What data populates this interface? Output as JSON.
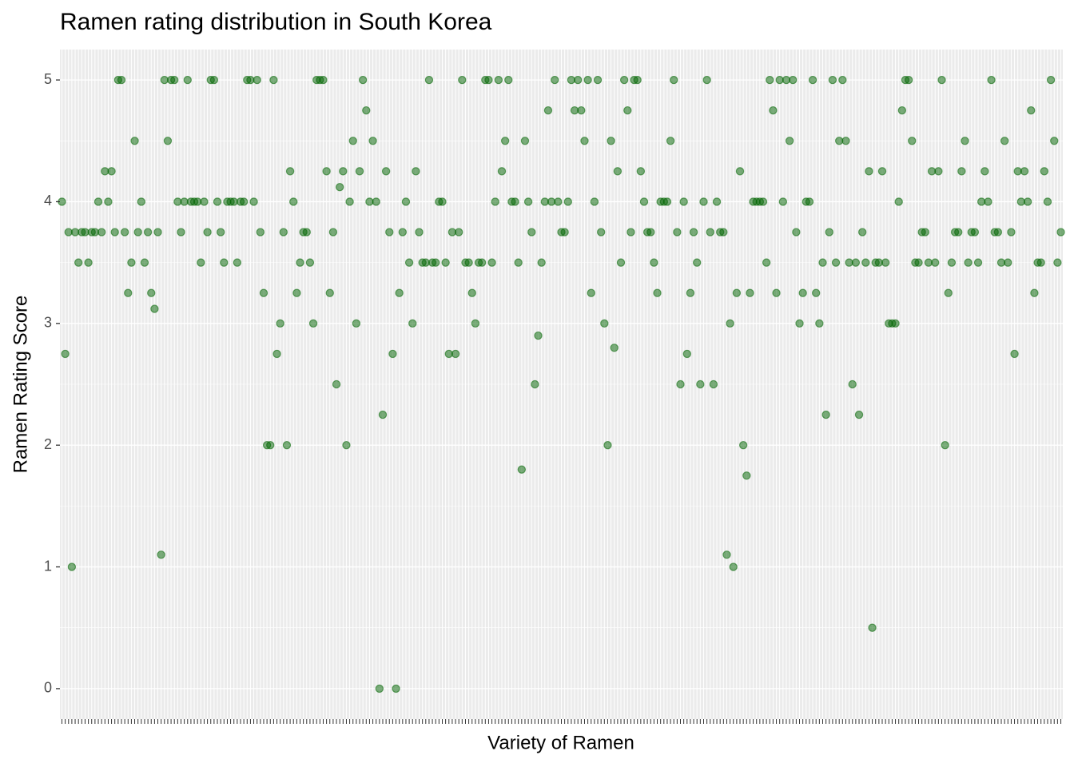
{
  "chart_data": {
    "type": "scatter",
    "title": "Ramen rating distribution in South Korea",
    "x_label": "Variety of Ramen",
    "y_label": "Ramen Rating Score",
    "color": "#006400",
    "grid": true,
    "ylim": [
      -0.25,
      5.25
    ],
    "yticks": [
      0,
      1,
      2,
      3,
      4,
      5
    ],
    "categories": [
      null,
      null,
      null,
      null,
      null,
      null,
      null,
      null,
      null,
      null,
      null,
      null,
      null,
      null,
      null,
      null,
      null,
      null,
      null,
      null,
      null,
      null,
      null,
      null,
      null,
      null,
      null,
      null,
      null,
      null,
      null,
      null,
      null,
      null,
      null,
      null,
      null,
      null,
      null,
      null,
      null,
      null,
      null,
      null,
      null,
      null,
      null,
      null,
      null,
      null,
      null,
      null,
      null,
      null,
      null,
      null,
      null,
      null,
      null,
      null,
      null,
      null,
      null,
      null,
      null,
      null,
      null,
      null,
      null,
      null,
      null,
      null,
      null,
      null,
      null,
      null,
      null,
      null,
      null,
      null,
      null,
      null,
      null,
      null,
      null,
      null,
      null,
      null,
      null,
      null,
      null,
      null,
      null,
      null,
      null,
      null,
      null,
      null,
      null,
      null,
      null,
      null,
      null,
      null,
      null,
      null,
      null,
      null,
      null,
      null,
      null,
      null,
      null,
      null,
      null,
      null,
      null,
      null,
      null,
      null,
      null,
      null,
      null,
      null,
      null,
      null,
      null,
      null,
      null,
      null,
      null,
      null,
      null,
      null,
      null,
      null,
      null,
      null,
      null,
      null,
      null,
      null,
      null,
      null,
      null,
      null,
      null,
      null,
      null,
      null,
      null,
      null,
      null,
      null,
      null,
      null,
      null,
      null,
      null,
      null,
      null,
      null,
      null,
      null,
      null,
      null,
      null,
      null,
      null,
      null,
      null,
      null,
      null,
      null,
      null,
      null,
      null,
      null,
      null,
      null,
      null,
      null,
      null,
      null,
      null,
      null,
      null,
      null,
      null,
      null,
      null,
      null,
      null,
      null,
      null,
      null,
      null,
      null,
      null,
      null,
      null,
      null,
      null,
      null,
      null,
      null,
      null,
      null,
      null,
      null,
      null,
      null,
      null,
      null,
      null,
      null,
      null,
      null,
      null,
      null,
      null,
      null,
      null,
      null,
      null,
      null,
      null,
      null,
      null,
      null,
      null,
      null,
      null,
      null,
      null,
      null,
      null,
      null,
      null,
      null,
      null,
      null,
      null,
      null,
      null,
      null,
      null,
      null,
      null,
      null,
      null,
      null,
      null,
      null,
      null,
      null,
      null,
      null,
      null,
      null,
      null,
      null,
      null,
      null,
      null,
      null,
      null,
      null,
      null,
      null,
      null,
      null,
      null,
      null,
      null,
      null,
      null,
      null,
      null,
      null,
      null,
      null,
      null,
      null,
      null,
      null,
      null,
      null,
      null,
      null,
      null,
      null,
      null,
      null,
      null,
      null,
      null,
      null,
      null,
      null,
      null,
      null,
      null
    ],
    "values": [
      4,
      2.75,
      3.75,
      1,
      3.75,
      3.5,
      3.75,
      3.75,
      3.5,
      3.75,
      3.75,
      4,
      3.75,
      4.25,
      4,
      4.25,
      3.75,
      5,
      5,
      3.75,
      3.25,
      3.5,
      4.5,
      3.75,
      4,
      3.5,
      3.75,
      3.25,
      3.12,
      3.75,
      1.1,
      5,
      4.5,
      5,
      5,
      4,
      3.75,
      4,
      5,
      4,
      4,
      4,
      3.5,
      4,
      3.75,
      5,
      5,
      4,
      3.75,
      3.5,
      4,
      4,
      4,
      3.5,
      4,
      4,
      5,
      5,
      4,
      5,
      3.75,
      3.25,
      2,
      2,
      5,
      2.75,
      3,
      3.75,
      2,
      4.25,
      4,
      3.25,
      3.5,
      3.75,
      3.75,
      3.5,
      3,
      5,
      5,
      5,
      4.25,
      3.25,
      3.75,
      2.5,
      4.12,
      4.25,
      2,
      4,
      4.5,
      3,
      4.25,
      5,
      4.75,
      4,
      4.5,
      4,
      0,
      2.25,
      4.25,
      3.75,
      2.75,
      0,
      3.25,
      3.75,
      4,
      3.5,
      3,
      4.25,
      3.75,
      3.5,
      3.5,
      5,
      3.5,
      3.5,
      4,
      4,
      3.5,
      2.75,
      3.75,
      2.75,
      3.75,
      5,
      3.5,
      3.5,
      3.25,
      3,
      3.5,
      3.5,
      5,
      5,
      3.5,
      4,
      5,
      4.25,
      4.5,
      5,
      4,
      4,
      3.5,
      1.8,
      4.5,
      4,
      3.75,
      2.5,
      2.9,
      3.5,
      4,
      4.75,
      4,
      5,
      4,
      3.75,
      3.75,
      4,
      5,
      4.75,
      5,
      4.75,
      4.5,
      5,
      3.25,
      4,
      5,
      3.75,
      3,
      2,
      4.5,
      2.8,
      4.25,
      3.5,
      5,
      4.75,
      3.75,
      5,
      5,
      4.25,
      4,
      3.75,
      3.75,
      3.5,
      3.25,
      4,
      4,
      4,
      4.5,
      5,
      3.75,
      2.5,
      4,
      2.75,
      3.25,
      3.75,
      3.5,
      2.5,
      4,
      5,
      3.75,
      2.5,
      4,
      3.75,
      3.75,
      1.1,
      3,
      1,
      3.25,
      4.25,
      2,
      1.75,
      3.25,
      4,
      4,
      4,
      4,
      3.5,
      5,
      4.75,
      3.25,
      5,
      4,
      5,
      4.5,
      5,
      3.75,
      3,
      3.25,
      4,
      4,
      5,
      3.25,
      3,
      3.5,
      2.25,
      3.75,
      5,
      3.5,
      4.5,
      5,
      4.5,
      3.5,
      2.5,
      3.5,
      2.25,
      3.75,
      3.5,
      4.25,
      0.5,
      3.5,
      3.5,
      4.25,
      3.5,
      3,
      3,
      3,
      4,
      4.75,
      5,
      5,
      4.5,
      3.5,
      3.5,
      3.75,
      3.75,
      3.5,
      4.25,
      3.5,
      4.25,
      5,
      2,
      3.25,
      3.5,
      3.75,
      3.75,
      4.25,
      4.5,
      3.5,
      3.75,
      3.75,
      3.5,
      4,
      4.25,
      4,
      5,
      3.75,
      3.75,
      3.5,
      4.5,
      3.5,
      3.75,
      2.75,
      4.25,
      4,
      4.25,
      4,
      4.75,
      3.25,
      3.5,
      3.5,
      4.25,
      4,
      5,
      4.5,
      3.5,
      3.75
    ]
  }
}
